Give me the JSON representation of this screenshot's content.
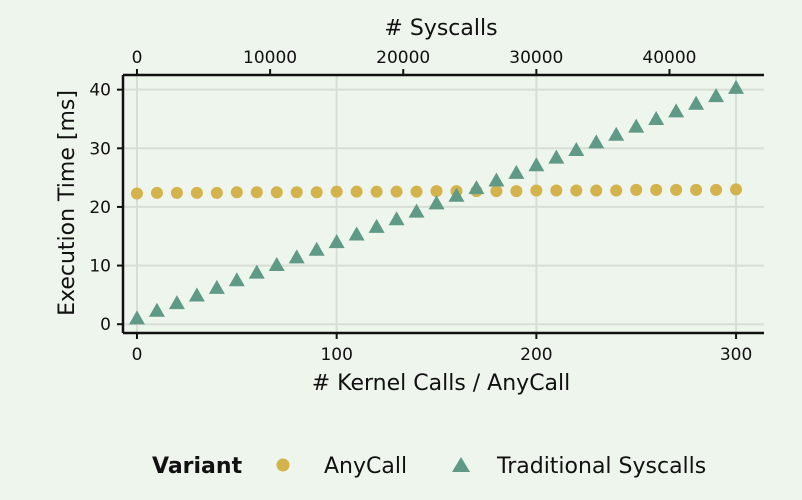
{
  "chart_data": {
    "type": "scatter",
    "xlabel": "# Kernel Calls / AnyCall",
    "x2label": "# Syscalls",
    "ylabel": "Execution Time [ms]",
    "xlim": [
      -7,
      314
    ],
    "ylim": [
      -1.5,
      42.5
    ],
    "x2lim": [
      -1050,
      47100
    ],
    "xticks": [
      0,
      100,
      200,
      300
    ],
    "x2ticks": [
      0,
      10000,
      20000,
      30000,
      40000
    ],
    "yticks": [
      0,
      10,
      20,
      30,
      40
    ],
    "grid": true,
    "legend": {
      "title": "Variant",
      "position": "bottom"
    },
    "colors": {
      "AnyCall": "#d4b24c",
      "Traditional Syscalls": "#5f9a87"
    },
    "x": [
      0,
      10,
      20,
      30,
      40,
      50,
      60,
      70,
      80,
      90,
      100,
      110,
      120,
      130,
      140,
      150,
      160,
      170,
      180,
      190,
      200,
      210,
      220,
      230,
      240,
      250,
      260,
      270,
      280,
      290,
      300
    ],
    "series": [
      {
        "name": "AnyCall",
        "marker": "circle",
        "values": [
          22.3,
          22.4,
          22.4,
          22.4,
          22.4,
          22.5,
          22.5,
          22.5,
          22.5,
          22.5,
          22.6,
          22.6,
          22.6,
          22.6,
          22.6,
          22.7,
          22.7,
          22.7,
          22.7,
          22.7,
          22.8,
          22.8,
          22.8,
          22.8,
          22.8,
          22.9,
          22.9,
          22.9,
          22.9,
          22.9,
          23.0
        ]
      },
      {
        "name": "Traditional Syscalls",
        "marker": "triangle",
        "values": [
          1.0,
          2.3,
          3.6,
          4.9,
          6.2,
          7.5,
          8.8,
          10.1,
          11.4,
          12.7,
          14.0,
          15.3,
          16.6,
          17.9,
          19.2,
          20.6,
          21.9,
          23.2,
          24.5,
          25.8,
          27.1,
          28.4,
          29.7,
          31.0,
          32.3,
          33.7,
          35.0,
          36.3,
          37.6,
          38.9,
          40.3
        ]
      }
    ]
  }
}
